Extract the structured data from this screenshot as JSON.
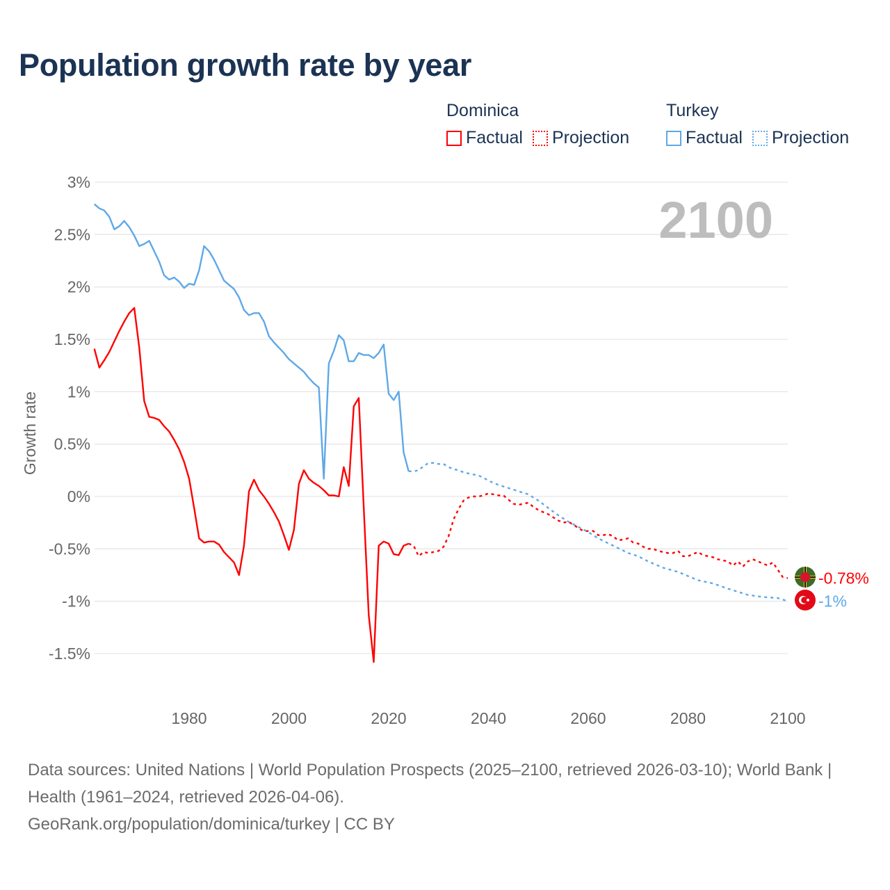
{
  "title": "Population growth rate by year",
  "legend": {
    "groups": [
      {
        "name": "Dominica",
        "color": "#ff0000",
        "factual_label": "Factual",
        "projection_label": "Projection"
      },
      {
        "name": "Turkey",
        "color": "#5ea8e8",
        "factual_label": "Factual",
        "projection_label": "Projection"
      }
    ]
  },
  "year_watermark": "2100",
  "footer": {
    "sources": "Data sources: United Nations | World Population Prospects (2025–2100, retrieved 2026-03-10); World Bank | Health (1961–2024, retrieved 2026-04-06).",
    "credit": "GeoRank.org/population/dominica/turkey | CC BY"
  },
  "chart_data": {
    "type": "line",
    "title": "Population growth rate by year",
    "xlabel": "",
    "ylabel": "Growth rate",
    "xlim": [
      1961,
      2100
    ],
    "ylim": [
      -1.5,
      3
    ],
    "x_ticks": [
      1980,
      2000,
      2020,
      2040,
      2060,
      2080,
      2100
    ],
    "y_ticks": [
      3,
      2.5,
      2,
      1.5,
      1,
      0.5,
      0,
      -0.5,
      -1,
      -1.5
    ],
    "y_tick_labels": [
      "3%",
      "2.5%",
      "2%",
      "1.5%",
      "1%",
      "0.5%",
      "0%",
      "-0.5%",
      "-1%",
      "-1.5%"
    ],
    "grid": true,
    "legend_position": "top-right",
    "series": [
      {
        "name": "Dominica",
        "kind": "factual",
        "color": "#ff0000",
        "start_year": 1961,
        "values": [
          1.41,
          1.23,
          1.3,
          1.38,
          1.48,
          1.58,
          1.67,
          1.75,
          1.8,
          1.42,
          0.91,
          0.76,
          0.75,
          0.73,
          0.67,
          0.62,
          0.54,
          0.45,
          0.33,
          0.17,
          -0.11,
          -0.4,
          -0.44,
          -0.43,
          -0.43,
          -0.46,
          -0.53,
          -0.58,
          -0.63,
          -0.75,
          -0.47,
          0.05,
          0.16,
          0.06,
          0.0,
          -0.07,
          -0.15,
          -0.24,
          -0.37,
          -0.51,
          -0.32,
          0.12,
          0.25,
          0.17,
          0.13,
          0.1,
          0.06,
          0.01,
          0.01,
          0.0,
          0.28,
          0.1,
          0.86,
          0.94,
          -0.1,
          -1.13,
          -1.58,
          -0.47,
          -0.43,
          -0.45,
          -0.55,
          -0.56,
          -0.47,
          -0.45
        ]
      },
      {
        "name": "Dominica",
        "kind": "projection",
        "color": "#ff0000",
        "start_year": 2024,
        "values": [
          -0.45,
          -0.47,
          -0.57,
          -0.53,
          -0.54,
          -0.53,
          -0.52,
          -0.48,
          -0.38,
          -0.22,
          -0.12,
          -0.04,
          -0.01,
          0.0,
          0.0,
          0.01,
          0.03,
          0.02,
          0.01,
          0.01,
          -0.03,
          -0.07,
          -0.08,
          -0.07,
          -0.06,
          -0.1,
          -0.13,
          -0.15,
          -0.17,
          -0.2,
          -0.23,
          -0.25,
          -0.24,
          -0.27,
          -0.3,
          -0.33,
          -0.33,
          -0.33,
          -0.37,
          -0.37,
          -0.36,
          -0.38,
          -0.42,
          -0.41,
          -0.4,
          -0.44,
          -0.45,
          -0.48,
          -0.5,
          -0.5,
          -0.52,
          -0.53,
          -0.54,
          -0.54,
          -0.52,
          -0.57,
          -0.57,
          -0.55,
          -0.53,
          -0.56,
          -0.57,
          -0.58,
          -0.6,
          -0.61,
          -0.62,
          -0.66,
          -0.62,
          -0.67,
          -0.62,
          -0.6,
          -0.62,
          -0.64,
          -0.66,
          -0.63,
          -0.7,
          -0.77,
          -0.78
        ],
        "end_label": "-0.78%"
      },
      {
        "name": "Turkey",
        "kind": "factual",
        "color": "#5ea8e8",
        "start_year": 1961,
        "values": [
          2.79,
          2.75,
          2.73,
          2.67,
          2.55,
          2.58,
          2.63,
          2.57,
          2.49,
          2.39,
          2.41,
          2.44,
          2.34,
          2.24,
          2.11,
          2.07,
          2.09,
          2.05,
          1.99,
          2.03,
          2.02,
          2.16,
          2.39,
          2.34,
          2.26,
          2.16,
          2.06,
          2.02,
          1.98,
          1.9,
          1.78,
          1.73,
          1.75,
          1.75,
          1.67,
          1.53,
          1.47,
          1.42,
          1.37,
          1.31,
          1.27,
          1.23,
          1.19,
          1.13,
          1.08,
          1.04,
          0.17,
          1.27,
          1.39,
          1.54,
          1.49,
          1.29,
          1.29,
          1.37,
          1.35,
          1.35,
          1.32,
          1.37,
          1.45,
          0.98,
          0.92,
          1.0,
          0.42,
          0.24
        ]
      },
      {
        "name": "Turkey",
        "kind": "projection",
        "color": "#5ea8e8",
        "x": [
          2024,
          2025,
          2026,
          2027,
          2028,
          2029,
          2030,
          2031,
          2032,
          2033,
          2034,
          2035,
          2036,
          2037,
          2038,
          2039,
          2040,
          2042,
          2044,
          2046,
          2048,
          2050,
          2052,
          2054,
          2056,
          2058,
          2060,
          2062,
          2065,
          2068,
          2070,
          2072,
          2075,
          2078,
          2080,
          2082,
          2085,
          2088,
          2090,
          2092,
          2095,
          2098,
          2100
        ],
        "values": [
          0.24,
          0.24,
          0.25,
          0.29,
          0.32,
          0.32,
          0.31,
          0.31,
          0.28,
          0.26,
          0.25,
          0.23,
          0.22,
          0.21,
          0.2,
          0.18,
          0.15,
          0.11,
          0.08,
          0.05,
          0.02,
          -0.04,
          -0.11,
          -0.18,
          -0.24,
          -0.29,
          -0.34,
          -0.4,
          -0.47,
          -0.54,
          -0.57,
          -0.62,
          -0.68,
          -0.72,
          -0.76,
          -0.8,
          -0.83,
          -0.88,
          -0.91,
          -0.94,
          -0.96,
          -0.97,
          -1.0
        ],
        "end_label": "-1%"
      }
    ]
  }
}
